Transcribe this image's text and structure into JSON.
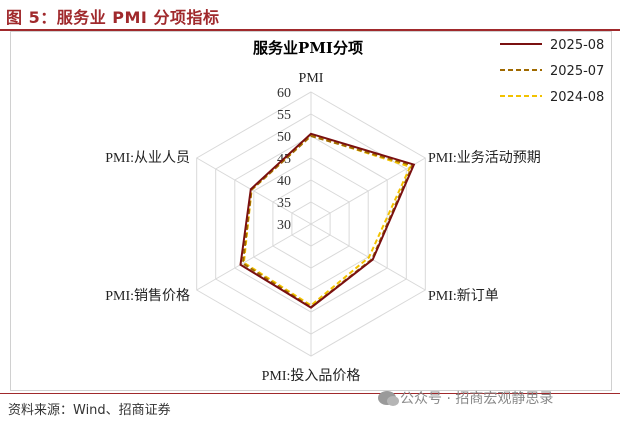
{
  "figure_title": "图 5：服务业 PMI 分项指标",
  "source": "资料来源：Wind、招商证券",
  "watermark": "公众号 · 招商宏观静思录",
  "colors": {
    "accent": "#a0292c",
    "s2025_08": "#7a1010",
    "s2025_07": "#a06a00",
    "s2024_08": "#f2c200",
    "grid": "#d9d9d9"
  },
  "chart_data": {
    "type": "radar",
    "title": "服务业PMI分项",
    "axes": [
      "PMI",
      "PMI:业务活动预期",
      "PMI:新订单",
      "PMI:投入品价格",
      "PMI:销售价格",
      "PMI:从业人员"
    ],
    "rlim": [
      30,
      60
    ],
    "ticks": [
      "30",
      "35",
      "40",
      "45",
      "50",
      "55",
      "60"
    ],
    "legend_position": "top-right",
    "series": [
      {
        "name": "2025-08",
        "values": [
          50.5,
          57.0,
          46.2,
          49.0,
          48.5,
          45.8
        ],
        "style": "solid"
      },
      {
        "name": "2025-07",
        "values": [
          50.0,
          56.6,
          46.0,
          48.9,
          47.9,
          45.6
        ],
        "style": "dashed"
      },
      {
        "name": "2024-08",
        "values": [
          50.2,
          56.0,
          45.2,
          48.5,
          47.6,
          45.6
        ],
        "style": "dashed"
      }
    ]
  }
}
